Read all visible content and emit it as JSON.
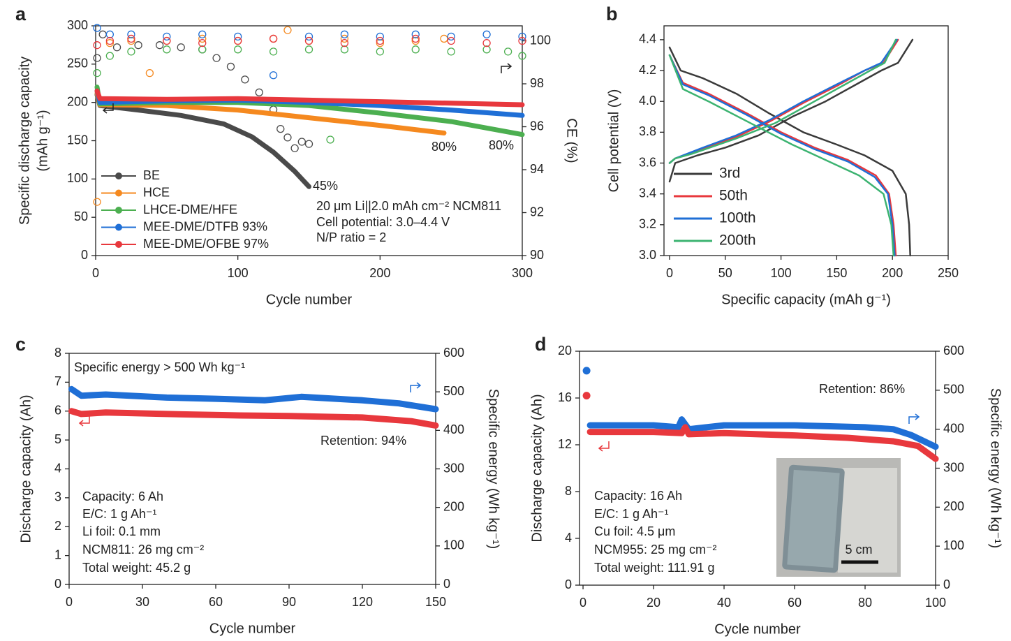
{
  "chart_data": [
    {
      "type": "line",
      "panel": "a",
      "xlabel": "Cycle number",
      "ylabel": [
        "Specific discharge capacity",
        "(mAh g⁻¹)"
      ],
      "y2label": "CE (%)",
      "xlim": [
        0,
        300
      ],
      "xticks": [
        0,
        100,
        200,
        300
      ],
      "ylim": [
        0,
        300
      ],
      "yticks": [
        0,
        50,
        100,
        150,
        200,
        250,
        300
      ],
      "y2lim": [
        90,
        100.7
      ],
      "y2ticks": [
        90,
        92,
        94,
        96,
        98,
        100
      ],
      "series": [
        {
          "name": "BE",
          "color": "#4a4a4a",
          "x": [
            1,
            3,
            30,
            60,
            90,
            110,
            125,
            140,
            150
          ],
          "values": [
            210,
            196,
            190,
            183,
            172,
            155,
            135,
            110,
            90
          ],
          "ce_x": [
            1,
            5,
            15,
            30,
            45,
            60,
            75,
            85,
            95,
            105,
            115,
            125,
            130,
            135,
            140,
            145,
            150
          ],
          "ce": [
            99.2,
            100.3,
            99.7,
            99.8,
            99.8,
            99.7,
            99.6,
            99.2,
            98.8,
            98.2,
            97.6,
            96.8,
            95.9,
            95.5,
            95.0,
            95.3,
            95.2
          ]
        },
        {
          "name": "HCE",
          "color": "#f5891f",
          "x": [
            1,
            3,
            50,
            100,
            150,
            200,
            245
          ],
          "values": [
            212,
            197,
            196,
            190,
            180,
            170,
            160
          ],
          "ce_x": [
            1,
            10,
            25,
            38,
            50,
            75,
            100,
            125,
            135,
            150,
            175,
            200,
            225,
            245
          ],
          "ce": [
            92.5,
            99.9,
            100.0,
            98.5,
            100.0,
            100.1,
            100.0,
            100.1,
            100.5,
            100.0,
            100.1,
            99.9,
            100.0,
            100.1
          ]
        },
        {
          "name": "LHCE-DME/HFE",
          "color": "#4caf50",
          "x": [
            1,
            3,
            50,
            100,
            150,
            200,
            250,
            300
          ],
          "values": [
            220,
            198,
            200,
            200,
            196,
            186,
            175,
            158
          ],
          "ce_x": [
            1,
            10,
            25,
            50,
            75,
            100,
            125,
            150,
            165,
            175,
            200,
            225,
            250,
            275,
            290,
            300
          ],
          "ce": [
            98.5,
            99.3,
            99.5,
            99.6,
            99.6,
            99.6,
            99.5,
            99.6,
            95.4,
            99.6,
            99.5,
            99.6,
            99.5,
            99.6,
            99.5,
            99.3
          ]
        },
        {
          "name": "MEE-DME/DTFB 93%",
          "color": "#1f6fd6",
          "x": [
            1,
            3,
            50,
            100,
            150,
            200,
            250,
            300
          ],
          "values": [
            215,
            200,
            202,
            203,
            200,
            196,
            190,
            183
          ],
          "ce_x": [
            1,
            10,
            25,
            50,
            75,
            100,
            125,
            150,
            175,
            200,
            225,
            250,
            275,
            300
          ],
          "ce": [
            100.6,
            100.3,
            100.3,
            100.2,
            100.3,
            100.2,
            98.4,
            100.2,
            100.3,
            100.2,
            100.3,
            100.2,
            100.3,
            100.2
          ]
        },
        {
          "name": "MEE-DME/OFBE 97%",
          "color": "#e8383d",
          "x": [
            1,
            3,
            50,
            100,
            150,
            200,
            250,
            300
          ],
          "values": [
            215,
            205,
            204,
            205,
            203,
            201,
            199,
            197
          ],
          "ce_x": [
            1,
            10,
            25,
            50,
            75,
            100,
            125,
            150,
            175,
            200,
            225,
            250,
            275,
            300
          ],
          "ce": [
            99.8,
            100.0,
            100.1,
            100.0,
            99.9,
            100.0,
            100.1,
            100.0,
            99.9,
            100.0,
            100.1,
            100.0,
            99.9,
            100.0
          ]
        }
      ],
      "annotations": [
        {
          "text": "45%",
          "color": "#555555"
        },
        {
          "text": "80%",
          "color": "#f5891f"
        },
        {
          "text": "80%",
          "color": "#4caf50"
        },
        {
          "text": "20 μm Li||2.0 mAh cm⁻² NCM811",
          "color": "#222222"
        },
        {
          "text": "Cell potential: 3.0–4.4 V",
          "color": "#222222"
        },
        {
          "text": "N/P ratio = 2",
          "color": "#222222"
        }
      ]
    },
    {
      "type": "line",
      "panel": "b",
      "xlabel": "Specific capacity (mAh g⁻¹)",
      "ylabel": "Cell potential (V)",
      "xlim": [
        -5,
        250
      ],
      "xticks": [
        0,
        50,
        100,
        150,
        200,
        250
      ],
      "ylim": [
        3.0,
        4.49
      ],
      "yticks": [
        {
          "value": 3.0,
          "label": "3.0"
        },
        3.2,
        3.4,
        3.6,
        3.8,
        {
          "value": 4.0,
          "label": "4.0"
        },
        4.2,
        4.4
      ],
      "series": [
        {
          "name": "3rd",
          "color": "#3a3a3a",
          "x": [
            0,
            5,
            25,
            50,
            80,
            110,
            140,
            165,
            190,
            205,
            218,
            null,
            0,
            10,
            30,
            60,
            90,
            120,
            150,
            175,
            200,
            212,
            215,
            216
          ],
          "values": [
            3.48,
            3.6,
            3.65,
            3.7,
            3.78,
            3.9,
            4.0,
            4.1,
            4.2,
            4.25,
            4.4,
            null,
            4.35,
            4.2,
            4.15,
            4.05,
            3.92,
            3.8,
            3.72,
            3.65,
            3.55,
            3.4,
            3.2,
            3.0
          ]
        },
        {
          "name": "50th",
          "color": "#e8383d",
          "x": [
            0,
            5,
            30,
            60,
            90,
            120,
            150,
            175,
            192,
            205,
            null,
            0,
            12,
            35,
            70,
            100,
            130,
            160,
            185,
            197,
            201,
            203
          ],
          "values": [
            3.6,
            3.63,
            3.69,
            3.77,
            3.87,
            3.99,
            4.1,
            4.2,
            4.25,
            4.4,
            null,
            4.3,
            4.12,
            4.05,
            3.92,
            3.8,
            3.7,
            3.62,
            3.52,
            3.4,
            3.2,
            3.0
          ]
        },
        {
          "name": "100th",
          "color": "#1f6fd6",
          "x": [
            0,
            5,
            30,
            60,
            90,
            120,
            150,
            175,
            190,
            204,
            null,
            0,
            12,
            35,
            70,
            100,
            130,
            160,
            184,
            196,
            200,
            202
          ],
          "values": [
            3.6,
            3.63,
            3.7,
            3.78,
            3.88,
            4.0,
            4.11,
            4.2,
            4.25,
            4.4,
            null,
            4.3,
            4.11,
            4.04,
            3.91,
            3.79,
            3.69,
            3.61,
            3.51,
            3.4,
            3.2,
            3.0
          ]
        },
        {
          "name": "200th",
          "color": "#3cb371",
          "x": [
            0,
            5,
            20,
            60,
            95,
            130,
            155,
            180,
            193,
            203,
            null,
            0,
            12,
            35,
            75,
            110,
            140,
            170,
            192,
            199,
            201
          ],
          "values": [
            3.6,
            3.63,
            3.66,
            3.76,
            3.86,
            4.0,
            4.1,
            4.2,
            4.25,
            4.4,
            null,
            4.3,
            4.08,
            4.0,
            3.85,
            3.72,
            3.62,
            3.52,
            3.4,
            3.2,
            3.0
          ]
        }
      ]
    },
    {
      "type": "line",
      "panel": "c",
      "xlabel": "Cycle number",
      "ylabel": "Discharge capacity (Ah)",
      "ylabel_color": "#e8383d",
      "y2label": "Specific energy (Wh kg⁻¹)",
      "y2label_color": "#1f6fd6",
      "xlim": [
        0,
        150
      ],
      "xticks": [
        0,
        30,
        60,
        90,
        120,
        150
      ],
      "ylim": [
        0,
        8
      ],
      "yticks": [
        0,
        1,
        2,
        3,
        4,
        5,
        6,
        7,
        8
      ],
      "y2lim": [
        0,
        600
      ],
      "y2ticks": [
        0,
        100,
        200,
        300,
        400,
        500,
        600
      ],
      "series": [
        {
          "color": "#1f6fd6",
          "axis": "y2",
          "x": [
            1,
            5,
            15,
            40,
            60,
            80,
            95,
            120,
            135,
            150
          ],
          "values": [
            507,
            490,
            493,
            485,
            482,
            478,
            487,
            478,
            470,
            455
          ]
        },
        {
          "color": "#e8383d",
          "x": [
            1,
            5,
            15,
            40,
            70,
            90,
            120,
            140,
            150
          ],
          "values": [
            6.0,
            5.9,
            5.95,
            5.9,
            5.85,
            5.83,
            5.78,
            5.65,
            5.5
          ]
        }
      ],
      "annotations": [
        {
          "text": "Specific energy > 500 Wh kg⁻¹",
          "color": "#222222"
        },
        {
          "text": "Retention: 94%",
          "color": "#222222"
        },
        {
          "text": "Capacity: 6 Ah",
          "color": "#222222"
        },
        {
          "text": "E/C: 1 g Ah⁻¹",
          "color": "#222222"
        },
        {
          "text": "Li foil: 0.1 mm",
          "color": "#222222"
        },
        {
          "text": "NCM811: 26 mg cm⁻²",
          "color": "#222222"
        },
        {
          "text": "Total weight: 45.2 g",
          "color": "#222222"
        }
      ]
    },
    {
      "type": "line",
      "panel": "d",
      "xlabel": "Cycle number",
      "ylabel": "Discharge capacity (Ah)",
      "ylabel_color": "#e8383d",
      "y2label": "Specific energy (Wh kg⁻¹)",
      "y2label_color": "#1f6fd6",
      "xlim": [
        -1,
        100
      ],
      "xticks": [
        0,
        20,
        40,
        60,
        80,
        100
      ],
      "ylim": [
        0,
        20
      ],
      "yticks": [
        0,
        4,
        8,
        12,
        16,
        20
      ],
      "y2lim": [
        0,
        600
      ],
      "y2ticks": [
        0,
        100,
        200,
        300,
        400,
        500,
        600
      ],
      "series": [
        {
          "color": "#1f6fd6",
          "axis": "y2",
          "marker": "dot",
          "x": [
            1
          ],
          "values": [
            550
          ]
        },
        {
          "color": "#e8383d",
          "marker": "dot",
          "x": [
            1
          ],
          "values": [
            16.2
          ]
        },
        {
          "color": "#1f6fd6",
          "axis": "y2",
          "x": [
            2,
            20,
            27,
            28,
            30,
            40,
            60,
            80,
            88,
            93,
            100
          ],
          "values": [
            410,
            410,
            405,
            425,
            400,
            410,
            410,
            405,
            400,
            385,
            355
          ]
        },
        {
          "color": "#e8383d",
          "x": [
            2,
            20,
            28,
            29,
            30,
            40,
            60,
            75,
            88,
            95,
            100
          ],
          "values": [
            13.1,
            13.1,
            13.0,
            13.5,
            12.9,
            13.0,
            12.8,
            12.6,
            12.3,
            11.9,
            10.8
          ]
        }
      ],
      "annotations": [
        {
          "text": "Retention: 86%",
          "color": "#222222"
        },
        {
          "text": "Capacity: 16 Ah",
          "color": "#222222"
        },
        {
          "text": "E/C: 1 g Ah⁻¹",
          "color": "#222222"
        },
        {
          "text": "Cu foil: 4.5 μm",
          "color": "#222222"
        },
        {
          "text": "NCM955: 25 mg cm⁻²",
          "color": "#222222"
        },
        {
          "text": "Total weight: 111.91 g",
          "color": "#222222"
        }
      ],
      "inset_label": "5 cm"
    }
  ]
}
